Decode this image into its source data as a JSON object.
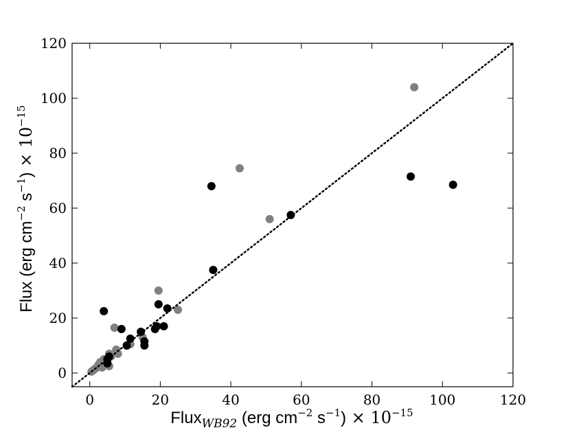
{
  "chart_data": {
    "type": "scatter",
    "xlabel": {
      "main": "Flux",
      "subscript": "WB92",
      "units": " (erg cm",
      "exp1": "−2",
      "mid": " s",
      "exp2": "−1",
      "close": ")",
      "times": " × 10",
      "exp3": "−15"
    },
    "ylabel": {
      "main": "Flux (erg cm",
      "exp1": "−2",
      "mid": " s",
      "exp2": "−1",
      "close": ")",
      "times": " × 10",
      "exp3": "−15"
    },
    "xlim": [
      -5,
      120
    ],
    "ylim": [
      -5,
      120
    ],
    "xticks": [
      "0",
      "20",
      "40",
      "60",
      "80",
      "100",
      "120"
    ],
    "yticks": [
      "0",
      "20",
      "40",
      "60",
      "80",
      "100",
      "120"
    ],
    "reference_line": {
      "style": "dotted",
      "from": [
        -5,
        -5
      ],
      "to": [
        120,
        120
      ]
    },
    "series": [
      {
        "color": "#808080",
        "points": [
          [
            0.5,
            0.5
          ],
          [
            1,
            1
          ],
          [
            1.5,
            1.5
          ],
          [
            2,
            2
          ],
          [
            2.5,
            3
          ],
          [
            3,
            4
          ],
          [
            3.5,
            2
          ],
          [
            4,
            5
          ],
          [
            5,
            3
          ],
          [
            5.5,
            2.5
          ],
          [
            5.5,
            7
          ],
          [
            6,
            6
          ],
          [
            7,
            16.5
          ],
          [
            7.5,
            8.5
          ],
          [
            8,
            7
          ],
          [
            10.5,
            10
          ],
          [
            11.5,
            10.5
          ],
          [
            15,
            13
          ],
          [
            19.5,
            30
          ],
          [
            25,
            23
          ],
          [
            42.5,
            74.5
          ],
          [
            51,
            56
          ],
          [
            92,
            104
          ]
        ]
      },
      {
        "color": "#000000",
        "points": [
          [
            4,
            22.5
          ],
          [
            5,
            3.5
          ],
          [
            5,
            5
          ],
          [
            5.5,
            6
          ],
          [
            9,
            16
          ],
          [
            10.5,
            10
          ],
          [
            11.5,
            12.5
          ],
          [
            14.5,
            15
          ],
          [
            15.5,
            11.5
          ],
          [
            15.5,
            10
          ],
          [
            18.5,
            16
          ],
          [
            19,
            17
          ],
          [
            19.5,
            25
          ],
          [
            21,
            17
          ],
          [
            22,
            23.5
          ],
          [
            34.5,
            68
          ],
          [
            35,
            37.5
          ],
          [
            57,
            57.5
          ],
          [
            91,
            71.5
          ],
          [
            103,
            68.5
          ]
        ]
      }
    ]
  }
}
